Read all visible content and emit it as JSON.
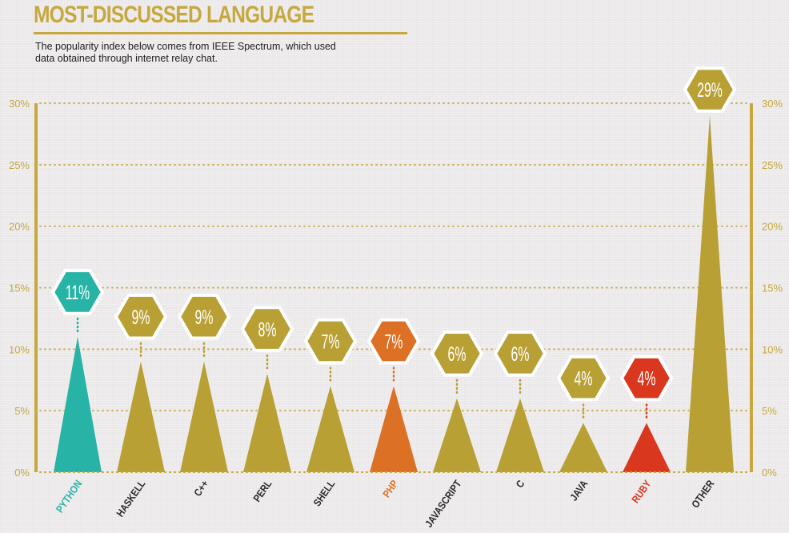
{
  "header": {
    "title": "MOST-DISCUSSED LANGUAGE",
    "subtitle_line1": "The popularity index below comes from IEEE Spectrum, which used",
    "subtitle_line2": "data obtained through internet relay chat."
  },
  "colors": {
    "gold": "#b9a035",
    "teal": "#27b3a6",
    "orange": "#dc7125",
    "red": "#d9381e",
    "axis": "#c6a83f",
    "hex_border": "#ffffff"
  },
  "chart_data": {
    "type": "bar",
    "title": "MOST-DISCUSSED LANGUAGE",
    "xlabel": "",
    "ylabel": "",
    "ylim": [
      0,
      30
    ],
    "yticks": [
      0,
      5,
      10,
      15,
      20,
      25,
      30
    ],
    "ytick_labels": [
      "0%",
      "5%",
      "10%",
      "15%",
      "20%",
      "25%",
      "30%"
    ],
    "grid": true,
    "categories": [
      "PYTHON",
      "HASKELL",
      "C++",
      "PERL",
      "SHELL",
      "PHP",
      "JAVASCRIPT",
      "C",
      "JAVA",
      "RUBY",
      "OTHER"
    ],
    "values": [
      11,
      9,
      9,
      8,
      7,
      7,
      6,
      6,
      4,
      4,
      29
    ],
    "value_labels": [
      "11%",
      "9%",
      "9%",
      "8%",
      "7%",
      "7%",
      "6%",
      "6%",
      "4%",
      "4%",
      "29%"
    ],
    "bar_colors": [
      "teal",
      "gold",
      "gold",
      "gold",
      "gold",
      "orange",
      "gold",
      "gold",
      "gold",
      "red",
      "gold"
    ],
    "label_colors": [
      "teal",
      "dark",
      "dark",
      "dark",
      "dark",
      "orange",
      "dark",
      "dark",
      "dark",
      "red",
      "dark"
    ]
  }
}
